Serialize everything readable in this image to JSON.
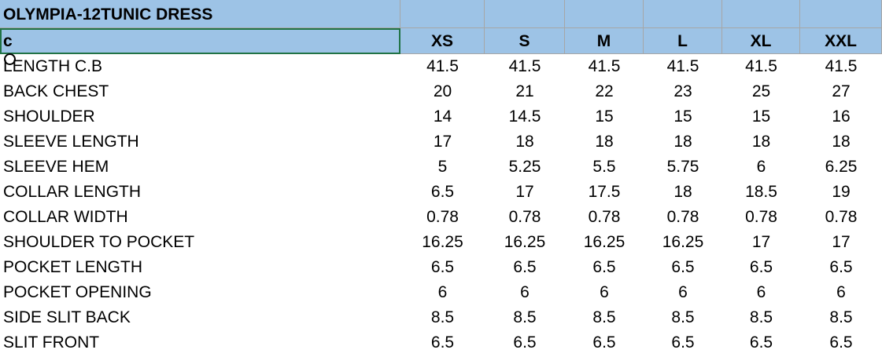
{
  "header": {
    "title": "OLYMPIA-12TUNIC DRESS"
  },
  "table": {
    "columns": [
      "c",
      "XS",
      "S",
      "M",
      "L",
      "XL",
      "XXL"
    ],
    "rows": [
      [
        "LENGTH C.B",
        41.5,
        41.5,
        41.5,
        41.5,
        41.5,
        41.5
      ],
      [
        "BACK CHEST",
        20,
        21,
        22,
        23,
        25,
        27
      ],
      [
        "SHOULDER",
        14,
        14.5,
        15,
        15,
        15,
        16
      ],
      [
        "SLEEVE LENGTH",
        17,
        18,
        18,
        18,
        18,
        18
      ],
      [
        "SLEEVE HEM",
        5,
        5.25,
        5.5,
        5.75,
        6,
        6.25
      ],
      [
        "COLLAR LENGTH",
        6.5,
        17,
        17.5,
        18,
        18.5,
        19
      ],
      [
        "COLLAR WIDTH",
        0.78,
        0.78,
        0.78,
        0.78,
        0.78,
        0.78
      ],
      [
        "SHOULDER TO POCKET",
        16.25,
        16.25,
        16.25,
        16.25,
        17,
        17
      ],
      [
        "POCKET LENGTH",
        6.5,
        6.5,
        6.5,
        6.5,
        6.5,
        6.5
      ],
      [
        "POCKET OPENING",
        6,
        6,
        6,
        6,
        6,
        6
      ],
      [
        "SIDE SLIT BACK",
        8.5,
        8.5,
        8.5,
        8.5,
        8.5,
        8.5
      ],
      [
        "SLIT FRONT",
        6.5,
        6.5,
        6.5,
        6.5,
        6.5,
        6.5
      ]
    ]
  }
}
